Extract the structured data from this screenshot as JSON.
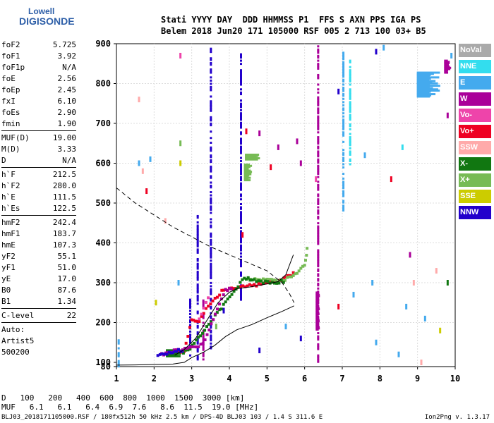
{
  "logo": {
    "line1": "Lowell",
    "line2": "DIGISONDE"
  },
  "header": {
    "row1": "Stati YYYY DAY  DDD HHMMSS P1  FFS S AXN PPS IGA PS",
    "row2": "Belem 2018 Jun20 171 105000 RSF 005 2 713 100 03+ B5"
  },
  "params": [
    {
      "k": "foF2",
      "v": "5.725"
    },
    {
      "k": "foF1",
      "v": "3.92"
    },
    {
      "k": "foF1p",
      "v": "N/A"
    },
    {
      "k": "foE",
      "v": "2.56"
    },
    {
      "k": "foEp",
      "v": "2.45"
    },
    {
      "k": "fxI",
      "v": "6.10"
    },
    {
      "k": "foEs",
      "v": "2.90"
    },
    {
      "k": "fmin",
      "v": "1.90"
    },
    {
      "sep": true
    },
    {
      "k": "MUF(D)",
      "v": "19.00"
    },
    {
      "k": "M(D)",
      "v": "3.33"
    },
    {
      "k": "D",
      "v": "N/A"
    },
    {
      "sep": true
    },
    {
      "k": "h`F",
      "v": "212.5"
    },
    {
      "k": "h`F2",
      "v": "280.0"
    },
    {
      "k": "h`E",
      "v": "111.5"
    },
    {
      "k": "h`Es",
      "v": "122.5"
    },
    {
      "sep": true
    },
    {
      "k": "hmF2",
      "v": "242.4"
    },
    {
      "k": "hmF1",
      "v": "183.7"
    },
    {
      "k": "hmE",
      "v": "107.3"
    },
    {
      "k": "yF2",
      "v": "55.1"
    },
    {
      "k": "yF1",
      "v": "51.0"
    },
    {
      "k": "yE",
      "v": "17.0"
    },
    {
      "k": "B0",
      "v": "87.6"
    },
    {
      "k": "B1",
      "v": "1.34"
    },
    {
      "sep": true
    },
    {
      "k": "C-level",
      "v": "22"
    },
    {
      "sep": true
    },
    {
      "k": "Auto:",
      "v": ""
    },
    {
      "k": "Artist5",
      "v": ""
    },
    {
      "k": "500200",
      "v": ""
    }
  ],
  "legend": [
    {
      "label": "NoVal",
      "color": "#aaaaaa"
    },
    {
      "label": "NNE",
      "color": "#33ddee"
    },
    {
      "label": "E",
      "color": "#44aaee"
    },
    {
      "label": "W",
      "color": "#aa0099"
    },
    {
      "label": "Vo-",
      "color": "#ee44aa"
    },
    {
      "label": "Vo+",
      "color": "#ee0022"
    },
    {
      "label": "SSW",
      "color": "#ffaaaa"
    },
    {
      "label": "X-",
      "color": "#117711"
    },
    {
      "label": "X+",
      "color": "#77bb55"
    },
    {
      "label": "SSE",
      "color": "#cccc00"
    },
    {
      "label": "NNW",
      "color": "#2200cc"
    }
  ],
  "muf_table": {
    "d_label": "D",
    "d_values": [
      "100",
      "200",
      "400",
      "600",
      "800",
      "1000",
      "1500",
      "3000"
    ],
    "d_unit": "[km]",
    "muf_label": "MUF",
    "muf_values": [
      "6.1",
      "6.1",
      "6.4",
      "6.9",
      "7.6",
      "8.6",
      "11.5",
      "19.0"
    ],
    "muf_unit": "[MHz]"
  },
  "footer": "BLJ03_2018171105000.RSF / 180fx512h 50 kHz 2.5 km / DPS-4D BLJ03 103 / 1.4 S 311.6 E",
  "version": "Ion2Png v. 1.3.17",
  "chart_data": {
    "type": "scatter",
    "xlim": [
      1,
      10
    ],
    "ylim": [
      80,
      900
    ],
    "xticks": [
      "1",
      "2",
      "3",
      "4",
      "5",
      "6",
      "7",
      "8",
      "9",
      "10"
    ],
    "yticks": [
      "80",
      "100",
      "200",
      "300",
      "400",
      "500",
      "600",
      "700",
      "800",
      "900"
    ],
    "grid": true,
    "profile": [
      [
        1.0,
        87
      ],
      [
        1.5,
        88
      ],
      [
        2.0,
        90
      ],
      [
        2.5,
        92
      ],
      [
        2.8,
        100
      ],
      [
        3.0,
        112
      ],
      [
        3.3,
        125
      ],
      [
        3.6,
        142
      ],
      [
        3.9,
        165
      ],
      [
        4.2,
        182
      ],
      [
        4.6,
        195
      ],
      [
        5.0,
        212
      ],
      [
        5.4,
        228
      ],
      [
        5.72,
        242
      ]
    ],
    "extrapolated": [
      [
        1.0,
        538
      ],
      [
        1.5,
        500
      ],
      [
        2.0,
        470
      ],
      [
        2.5,
        440
      ],
      [
        3.0,
        415
      ],
      [
        3.5,
        390
      ],
      [
        4.0,
        370
      ],
      [
        4.5,
        350
      ],
      [
        5.0,
        330
      ],
      [
        5.4,
        300
      ],
      [
        5.6,
        272
      ],
      [
        5.72,
        250
      ]
    ],
    "fit_trace": [
      [
        2.55,
        118
      ],
      [
        2.8,
        132
      ],
      [
        3.1,
        160
      ],
      [
        3.4,
        205
      ],
      [
        3.7,
        250
      ],
      [
        4.0,
        276
      ],
      [
        4.2,
        285
      ],
      [
        4.6,
        290
      ],
      [
        5.0,
        297
      ],
      [
        5.3,
        303
      ],
      [
        5.5,
        320
      ],
      [
        5.7,
        370
      ]
    ],
    "traces": [
      {
        "c": "#ee0022",
        "pts": [
          [
            2.55,
            127
          ],
          [
            2.8,
            128
          ],
          [
            3.0,
            205
          ],
          [
            3.2,
            205
          ],
          [
            3.5,
            250
          ],
          [
            3.8,
            278
          ],
          [
            4.0,
            285
          ],
          [
            4.3,
            288
          ],
          [
            4.6,
            293
          ],
          [
            4.9,
            298
          ],
          [
            5.1,
            302
          ],
          [
            5.4,
            308
          ],
          [
            5.6,
            318
          ],
          [
            5.75,
            326
          ]
        ]
      },
      {
        "c": "#77bb55",
        "pts": [
          [
            4.5,
            312
          ],
          [
            4.8,
            307
          ],
          [
            5.0,
            306
          ],
          [
            5.3,
            305
          ],
          [
            5.6,
            312
          ],
          [
            5.8,
            325
          ],
          [
            6.0,
            345
          ],
          [
            6.05,
            372
          ],
          [
            6.08,
            395
          ]
        ]
      },
      {
        "c": "#117711",
        "pts": [
          [
            2.45,
            122
          ],
          [
            2.6,
            124
          ],
          [
            2.9,
            128
          ],
          [
            4.4,
            312
          ],
          [
            4.6,
            308
          ],
          [
            4.9,
            302
          ],
          [
            5.2,
            300
          ],
          [
            5.5,
            305
          ]
        ]
      },
      {
        "c": "#aa0099",
        "pts": [
          [
            2.2,
            120
          ],
          [
            2.7,
            132
          ],
          [
            3.0,
            137
          ],
          [
            3.3,
            145
          ],
          [
            3.9,
            282
          ],
          [
            4.1,
            287
          ]
        ]
      },
      {
        "c": "#2200cc",
        "pts": [
          [
            2.1,
            118
          ],
          [
            2.4,
            123
          ],
          [
            2.6,
            130
          ],
          [
            2.8,
            126
          ]
        ]
      },
      {
        "c": "#ee44aa",
        "pts": [
          [
            3.2,
            210
          ],
          [
            3.5,
            272
          ]
        ]
      }
    ],
    "columns": [
      {
        "x": 3.5,
        "y0": 130,
        "y1": 890,
        "c": "#2200cc"
      },
      {
        "x": 4.3,
        "y0": 260,
        "y1": 880,
        "c": "#2200cc"
      },
      {
        "x": 6.35,
        "y0": 100,
        "y1": 900,
        "c": "#aa0099"
      },
      {
        "x": 7.02,
        "y0": 480,
        "y1": 880,
        "c": "#44aaee"
      },
      {
        "x": 7.2,
        "y0": 600,
        "y1": 860,
        "c": "#33ddee"
      },
      {
        "x": 3.15,
        "y0": 110,
        "y1": 470,
        "c": "#2200cc"
      },
      {
        "x": 1.05,
        "y0": 82,
        "y1": 160,
        "c": "#44aaee"
      },
      {
        "x": 2.95,
        "y0": 120,
        "y1": 260,
        "c": "#2200cc"
      },
      {
        "x": 3.3,
        "y0": 110,
        "y1": 260,
        "c": "#aa0099"
      }
    ],
    "blocks": [
      {
        "x": 6.35,
        "y0": 185,
        "y1": 280,
        "c": "#aa0099",
        "w": 6
      },
      {
        "x": 4.62,
        "y0": 612,
        "y1": 626,
        "c": "#77bb55",
        "w": 22
      },
      {
        "x": 4.5,
        "y0": 560,
        "y1": 600,
        "c": "#77bb55",
        "w": 12
      },
      {
        "x": 9.3,
        "y0": 770,
        "y1": 830,
        "c": "#44aaee",
        "w": 34
      },
      {
        "x": 9.8,
        "y0": 830,
        "y1": 860,
        "c": "#aa0099",
        "w": 10
      },
      {
        "x": 2.52,
        "y0": 118,
        "y1": 135,
        "c": "#117711",
        "w": 22
      }
    ],
    "dots": [
      [
        1.9,
        610,
        "#44aaee"
      ],
      [
        1.6,
        600,
        "#44aaee"
      ],
      [
        1.8,
        530,
        "#ee0022"
      ],
      [
        2.7,
        870,
        "#ee44aa"
      ],
      [
        1.6,
        760,
        "#ffaaaa"
      ],
      [
        2.7,
        650,
        "#77bb55"
      ],
      [
        2.7,
        600,
        "#cccc00"
      ],
      [
        2.3,
        455,
        "#ffaaaa"
      ],
      [
        4.45,
        680,
        "#ee0022"
      ],
      [
        5.3,
        640,
        "#aa0099"
      ],
      [
        5.1,
        590,
        "#ee0022"
      ],
      [
        5.8,
        655,
        "#aa0099"
      ],
      [
        5.9,
        600,
        "#aa0099"
      ],
      [
        4.8,
        675,
        "#aa0099"
      ],
      [
        6.9,
        780,
        "#2200cc"
      ],
      [
        7.9,
        880,
        "#2200cc"
      ],
      [
        8.1,
        890,
        "#44aaee"
      ],
      [
        8.6,
        640,
        "#33ddee"
      ],
      [
        8.3,
        560,
        "#ee0022"
      ],
      [
        9.5,
        330,
        "#ffaaaa"
      ],
      [
        9.8,
        300,
        "#117711"
      ],
      [
        9.8,
        720,
        "#aa0099"
      ],
      [
        9.9,
        870,
        "#44aaee"
      ],
      [
        7.6,
        620,
        "#44aaee"
      ],
      [
        8.8,
        370,
        "#aa0099"
      ],
      [
        7.3,
        270,
        "#44aaee"
      ],
      [
        7.8,
        300,
        "#44aaee"
      ],
      [
        8.7,
        240,
        "#44aaee"
      ],
      [
        9.2,
        210,
        "#44aaee"
      ],
      [
        5.9,
        160,
        "#2200cc"
      ],
      [
        6.9,
        240,
        "#ee0022"
      ],
      [
        7.9,
        150,
        "#44aaee"
      ],
      [
        8.5,
        120,
        "#44aaee"
      ],
      [
        9.1,
        100,
        "#ffaaaa"
      ],
      [
        6.3,
        560,
        "#ee44aa"
      ],
      [
        1.7,
        580,
        "#ffaaaa"
      ],
      [
        2.05,
        250,
        "#cccc00"
      ],
      [
        4.35,
        420,
        "#ee0022"
      ],
      [
        3.85,
        230,
        "#2200cc"
      ],
      [
        3.65,
        190,
        "#77bb55"
      ],
      [
        2.65,
        300,
        "#44aaee"
      ],
      [
        5.5,
        190,
        "#44aaee"
      ],
      [
        9.6,
        180,
        "#cccc00"
      ],
      [
        8.9,
        300,
        "#ffaaaa"
      ],
      [
        4.8,
        130,
        "#2200cc"
      ]
    ]
  }
}
